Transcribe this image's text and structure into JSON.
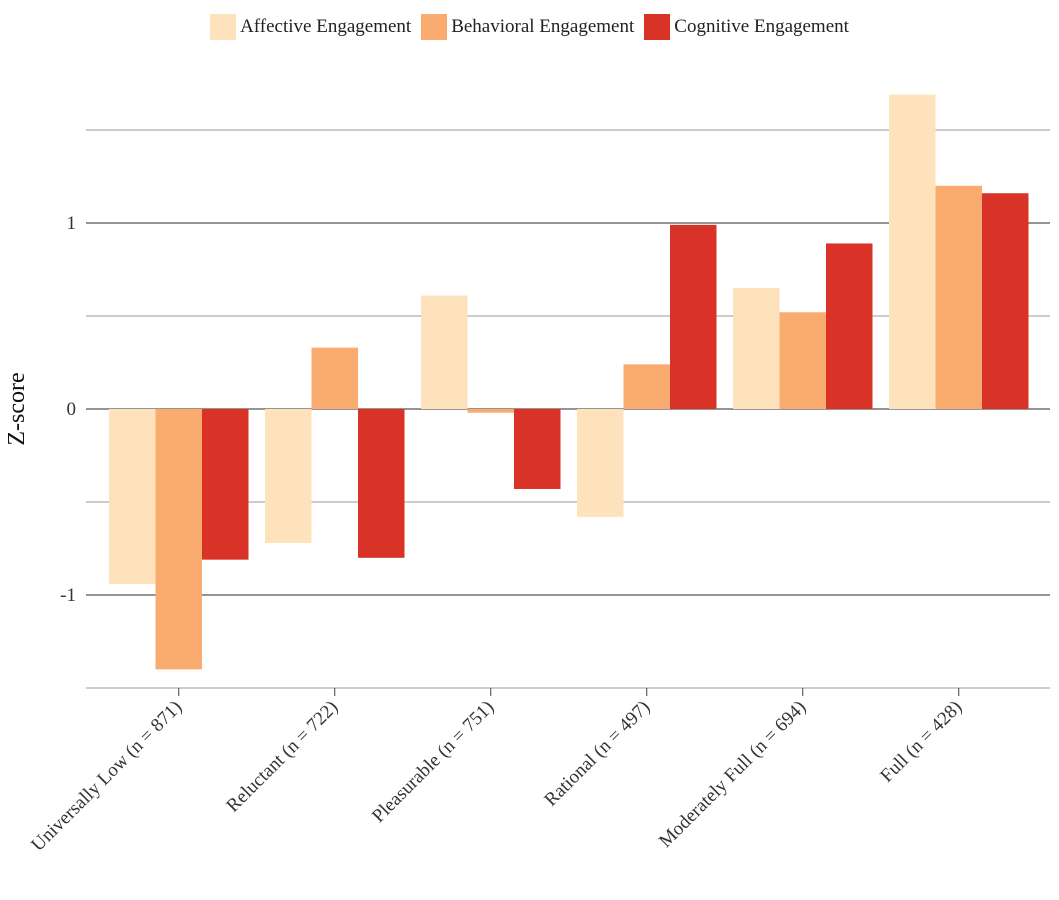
{
  "chart_data": {
    "type": "bar",
    "title": "",
    "xlabel": "",
    "ylabel": "Z-score",
    "ylim": [
      -1.5,
      1.7
    ],
    "yticks": [
      -1,
      0,
      1
    ],
    "gridlines": [
      -1.5,
      -1,
      -0.5,
      0,
      0.5,
      1,
      1.5
    ],
    "grid": true,
    "legend_position": "top-center",
    "categories": [
      "Universally Low (n = 871)",
      "Reluctant (n = 722)",
      "Pleasurable (n = 751)",
      "Rational (n = 497)",
      "Moderately Full (n = 694)",
      "Full (n = 428)"
    ],
    "series": [
      {
        "name": "Affective Engagement",
        "color": "#fde2bb",
        "values": [
          -0.94,
          -0.72,
          0.61,
          -0.58,
          0.65,
          1.69
        ]
      },
      {
        "name": "Behavioral Engagement",
        "color": "#faab6f",
        "values": [
          -1.4,
          0.33,
          -0.02,
          0.24,
          0.52,
          1.2
        ]
      },
      {
        "name": "Cognitive Engagement",
        "color": "#d93227",
        "values": [
          -0.81,
          -0.8,
          -0.43,
          0.99,
          0.89,
          1.16
        ]
      }
    ]
  }
}
